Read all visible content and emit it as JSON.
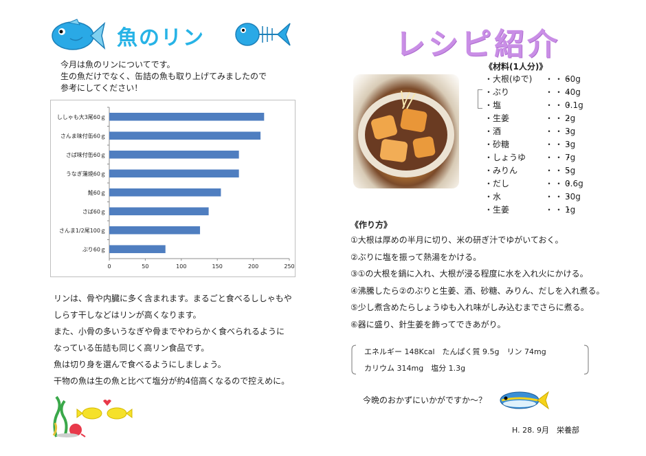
{
  "left": {
    "title": "魚のリン",
    "intro": [
      "今月は魚のリンについてです。",
      "生の魚だけでなく、缶詰の魚も取り上げてみましたので",
      "参考にしてください！"
    ],
    "paragraph": [
      "リンは、骨や内臓に多く含まれます。まるごと食べるししゃもや",
      "しらす干しなどはリンが高くなります。",
      "また、小骨の多いうなぎや骨までやわらかく食べられるように",
      "なっている缶詰も同じく高リン食品です。",
      "魚は切り身を選んで食べるようにしましょう。",
      "干物の魚は生の魚と比べて塩分が約4倍高くなるので控えめに。"
    ]
  },
  "chart_data": {
    "type": "bar",
    "orientation": "horizontal",
    "categories": [
      "ししゃも大3尾60ｇ",
      "さんま味付缶60ｇ",
      "さば味付缶60ｇ",
      "うなぎ蒲焼60ｇ",
      "鮭60ｇ",
      "さば60ｇ",
      "さんま1/2尾100ｇ",
      "ぶり60ｇ"
    ],
    "values": [
      215,
      210,
      180,
      180,
      155,
      138,
      126,
      78
    ],
    "xlim": [
      0,
      250
    ],
    "xticks": [
      "0",
      "50",
      "100",
      "150",
      "200",
      "250"
    ],
    "grid": false,
    "bar_color": "#4f7ec0"
  },
  "right": {
    "title": "レシピ紹介",
    "ingredients_title": "《材料(1人分)》",
    "ingredients": [
      {
        "name": "・大根(ゆで)",
        "dots": "・・・",
        "amount": "60g"
      },
      {
        "name": "・ぶり",
        "dots": "・・・",
        "amount": "40g"
      },
      {
        "name": "・塩",
        "dots": "・・・",
        "amount": "0.1g"
      },
      {
        "name": "・生姜",
        "dots": "・・・",
        "amount": "2g"
      },
      {
        "name": "・酒",
        "dots": "・・・",
        "amount": "3g"
      },
      {
        "name": "・砂糖",
        "dots": "・・・",
        "amount": "3g"
      },
      {
        "name": "・しょうゆ",
        "dots": "・・・",
        "amount": "7g"
      },
      {
        "name": "・みりん",
        "dots": "・・・",
        "amount": "5g"
      },
      {
        "name": "・だし",
        "dots": "・・・",
        "amount": "0.6g"
      },
      {
        "name": "・水",
        "dots": "・・・",
        "amount": "30g"
      },
      {
        "name": "・生姜",
        "dots": "・・・",
        "amount": "1g"
      }
    ],
    "steps_title": "《作り方》",
    "steps": [
      "①大根は厚めの半月に切り、米の研ぎ汁でゆがいておく。",
      "②ぶりに塩を振って熱湯をかける。",
      "③①の大根を鍋に入れ、大根が浸る程度に水を入れ火にかける。",
      "④沸騰したら②のぶりと生姜、酒、砂糖、みりん、だしを入れ煮る。",
      "⑤少し煮含めたらしょうゆも入れ味がしみ込むまでさらに煮る。",
      "⑥器に盛り、針生姜を飾ってできあがり。"
    ],
    "nutrition_line1": "エネルギー 148Kcal　たんぱく質 9.5g　リン 74mg",
    "nutrition_line2": "カリウム 314mg　塩分 1.3g",
    "closing": "今晩のおかずにいかがですか～？",
    "footer": "H. 28. 9月　栄養部"
  },
  "colors": {
    "left_title": "#27b3e6",
    "right_title": "#c98ee6",
    "bar": "#4f7ec0"
  },
  "icons": [
    "blue-fish-icon",
    "fish-bone-icon",
    "seaweed-fish-icon",
    "yellowtail-fish-icon"
  ]
}
